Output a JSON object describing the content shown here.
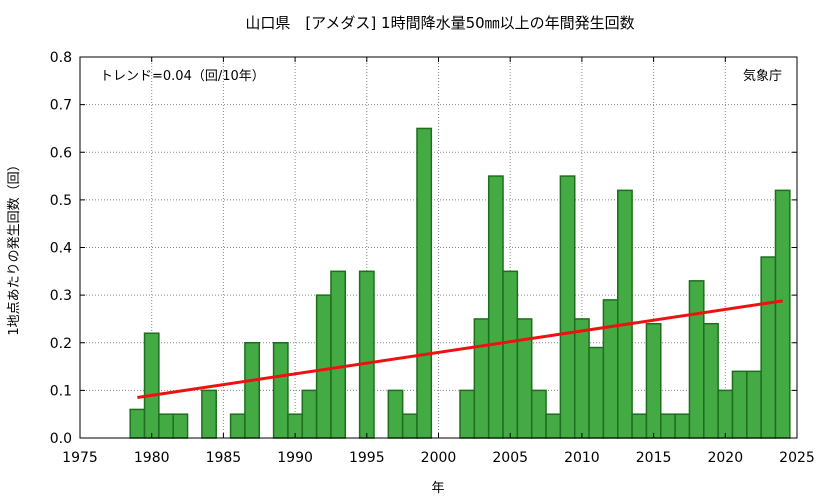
{
  "chart_data": {
    "type": "bar",
    "title": "山口県　[アメダス] 1時間降水量50㎜以上の年間発生回数",
    "xlabel": "年",
    "ylabel": "1地点あたりの発生回数（回）",
    "trend_label": "トレンド=0.04（回/10年）",
    "source_label": "気象庁",
    "xlim": [
      1975,
      2025
    ],
    "ylim": [
      0,
      0.8
    ],
    "x_ticks": [
      1975,
      1980,
      1985,
      1990,
      1995,
      2000,
      2005,
      2010,
      2015,
      2020,
      2025
    ],
    "y_ticks": [
      "0.0",
      "0.1",
      "0.2",
      "0.3",
      "0.4",
      "0.5",
      "0.6",
      "0.7",
      "0.8"
    ],
    "grid": true,
    "colors": {
      "bar_fill": "#44aa44",
      "bar_edge": "#1d6f1d",
      "trend": "#ee1111"
    },
    "years": [
      1979,
      1980,
      1981,
      1982,
      1983,
      1984,
      1985,
      1986,
      1987,
      1988,
      1989,
      1990,
      1991,
      1992,
      1993,
      1994,
      1995,
      1996,
      1997,
      1998,
      1999,
      2000,
      2001,
      2002,
      2003,
      2004,
      2005,
      2006,
      2007,
      2008,
      2009,
      2010,
      2011,
      2012,
      2013,
      2014,
      2015,
      2016,
      2017,
      2018,
      2019,
      2020,
      2021,
      2022,
      2023,
      2024
    ],
    "values": [
      0.06,
      0.22,
      0.05,
      0.05,
      0,
      0.1,
      0,
      0.05,
      0.2,
      0,
      0.2,
      0.05,
      0.1,
      0.3,
      0.35,
      0,
      0.35,
      0,
      0.1,
      0.05,
      0.65,
      0,
      0,
      0.1,
      0.25,
      0.55,
      0.35,
      0.25,
      0.1,
      0.05,
      0.55,
      0.25,
      0.19,
      0.29,
      0.52,
      0.05,
      0.24,
      0.05,
      0.05,
      0.33,
      0.24,
      0.1,
      0.14,
      0.14,
      0.38,
      0.52
    ],
    "trend": {
      "x": [
        1979,
        2024
      ],
      "y": [
        0.085,
        0.288
      ]
    }
  }
}
